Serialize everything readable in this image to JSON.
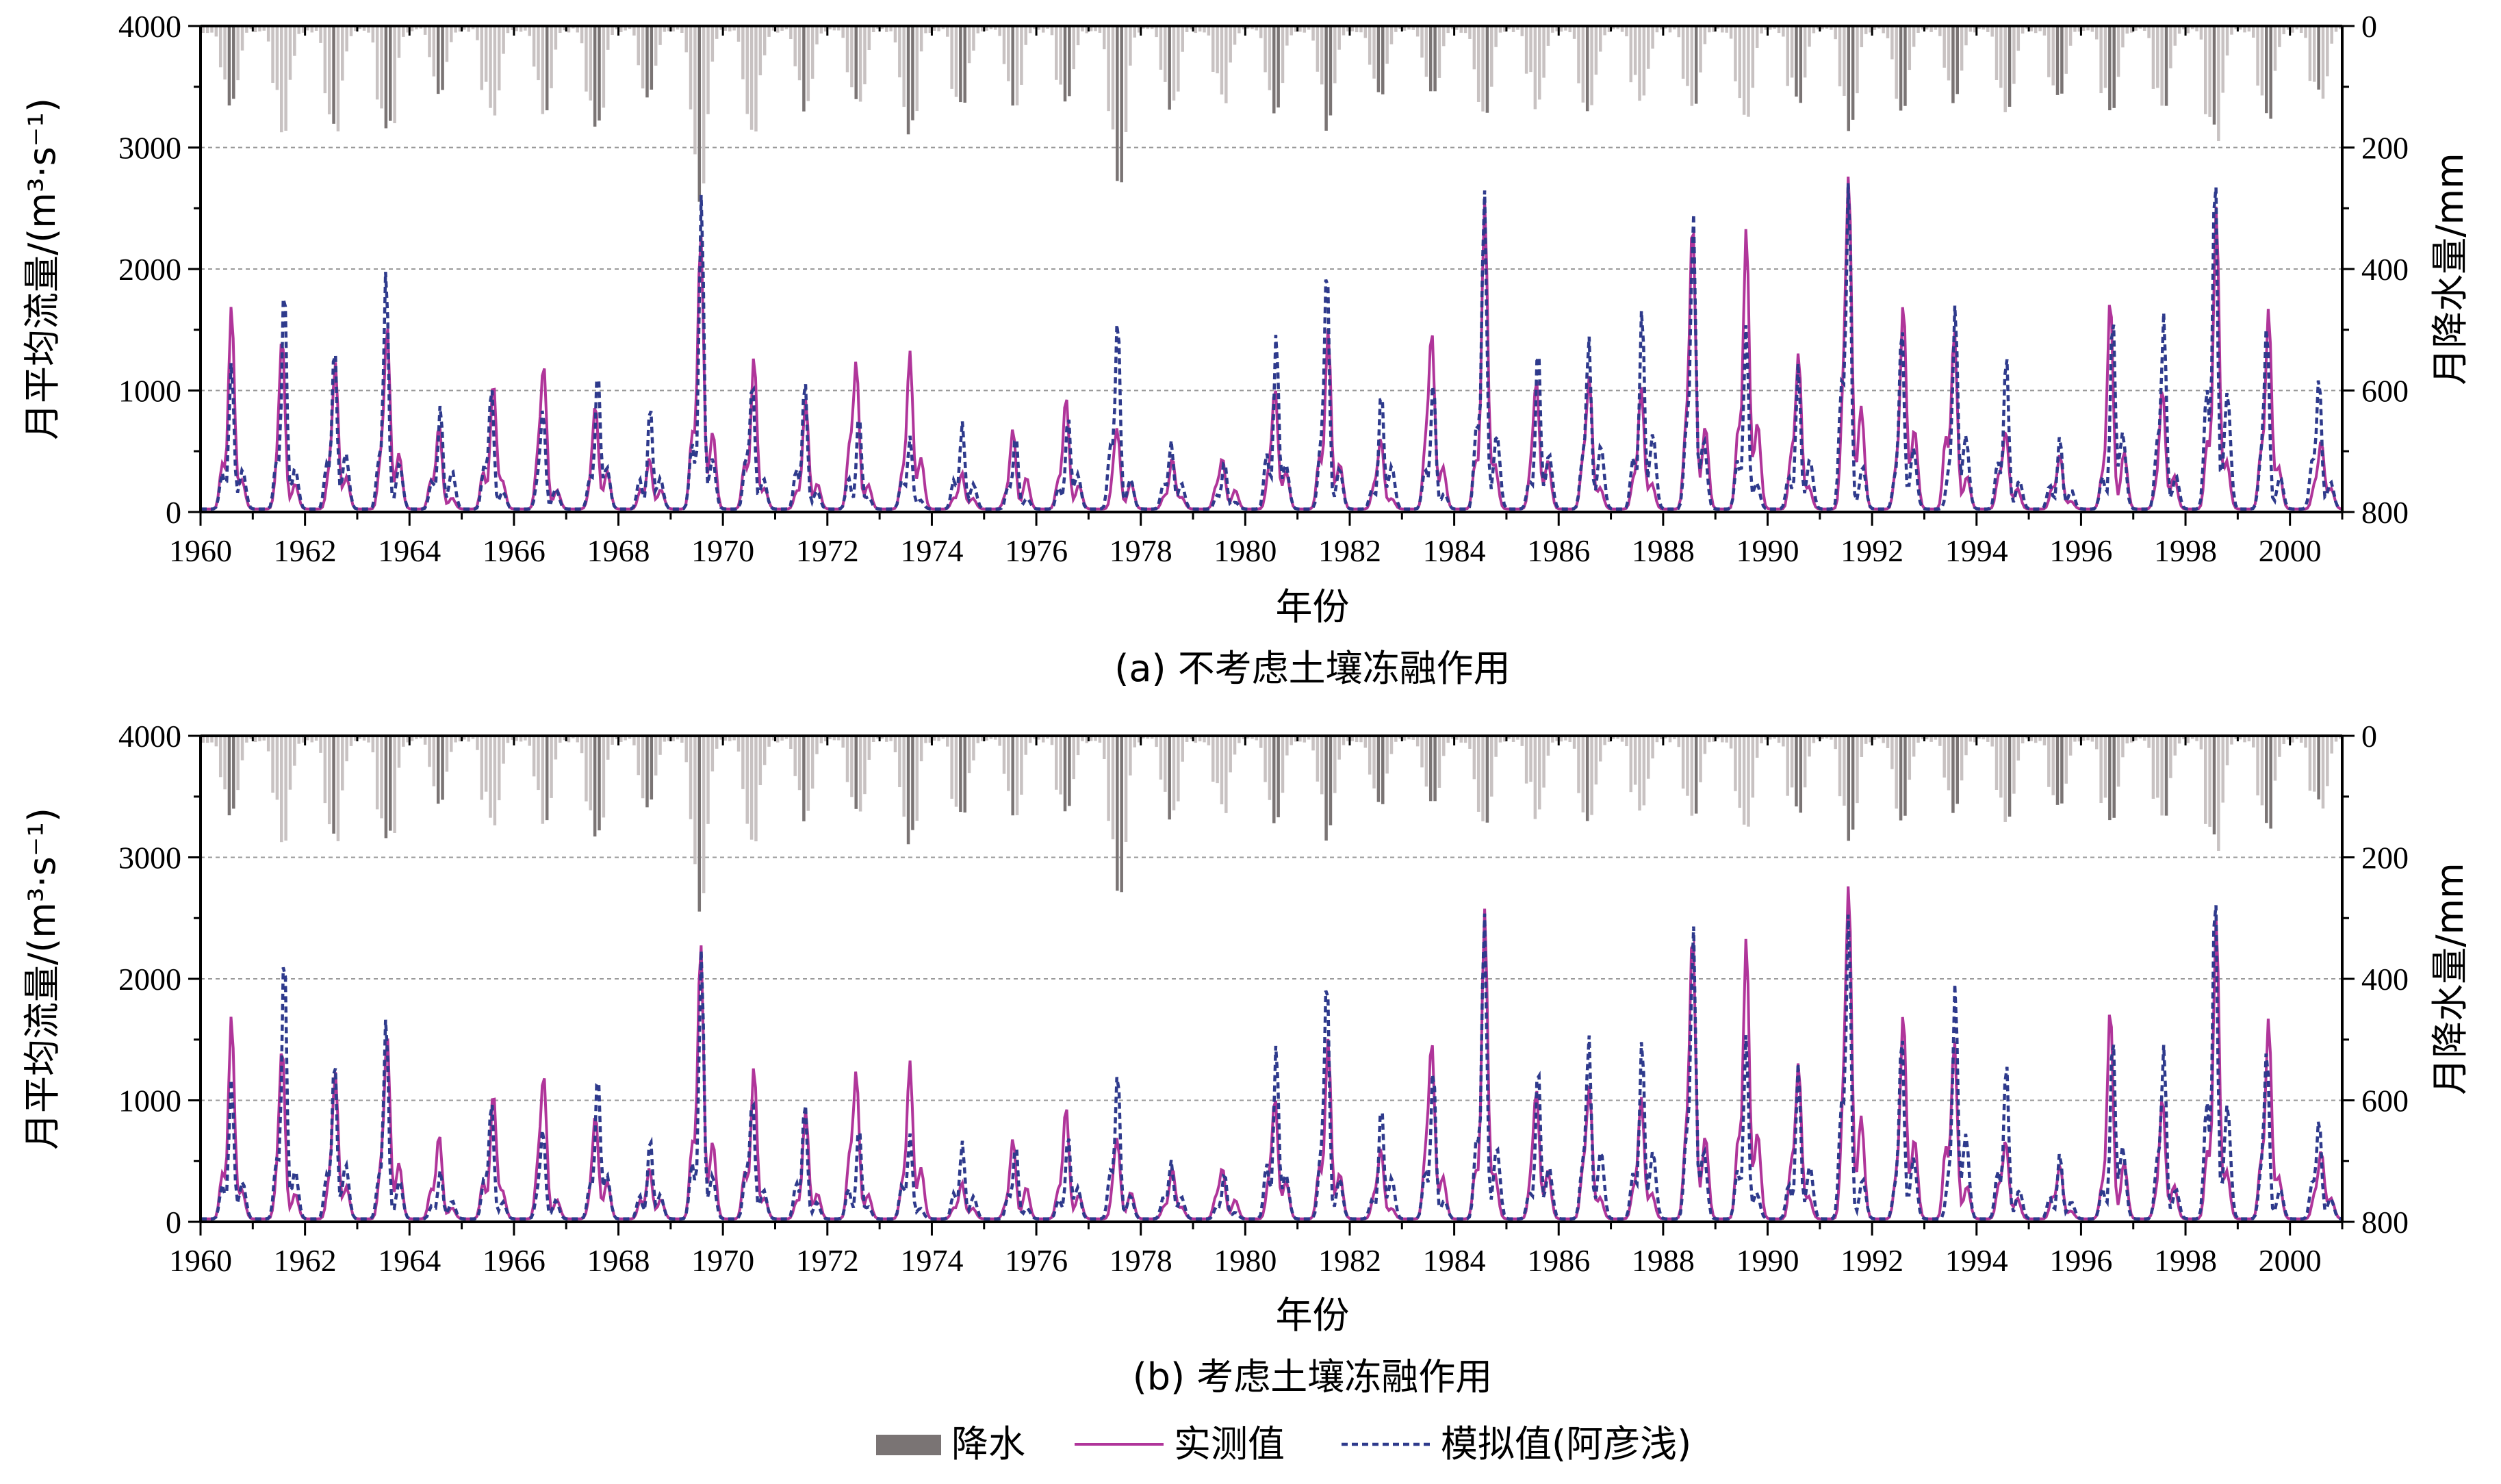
{
  "chart_data": [
    {
      "type": "line",
      "caption": "(a) 不考虑土壤冻融作用",
      "xlabel": "年份",
      "ylabel": "月平均流量/(m³·s⁻¹)",
      "ylabel2": "月降水量/mm",
      "xlim": [
        1960,
        2001
      ],
      "ylim": [
        0,
        4000
      ],
      "y2lim": [
        0,
        800
      ],
      "y2_inverted": true,
      "xticks": [
        "1960",
        "1962",
        "1964",
        "1966",
        "1968",
        "1970",
        "1972",
        "1974",
        "1976",
        "1978",
        "1980",
        "1982",
        "1984",
        "1986",
        "1988",
        "1990",
        "1992",
        "1994",
        "1996",
        "1998",
        "2000"
      ],
      "yticks": [
        "0",
        "1000",
        "2000",
        "3000",
        "4000"
      ],
      "y2ticks": [
        "800",
        "600",
        "400",
        "200",
        "0"
      ],
      "grid": "horizontal dashed",
      "x": [
        1960,
        1961,
        1962,
        1963,
        1964,
        1965,
        1966,
        1967,
        1968,
        1969,
        1970,
        1971,
        1972,
        1973,
        1974,
        1975,
        1976,
        1977,
        1978,
        1979,
        1980,
        1981,
        1982,
        1983,
        1984,
        1985,
        1986,
        1987,
        1988,
        1989,
        1990,
        1991,
        1992,
        1993,
        1994,
        1995,
        1996,
        1997,
        1998,
        1999,
        2000
      ],
      "series": [
        {
          "name": "实测值",
          "values": [
            1680,
            1400,
            1200,
            1500,
            700,
            1050,
            1170,
            850,
            420,
            2280,
            1260,
            900,
            1210,
            1300,
            300,
            660,
            930,
            620,
            420,
            420,
            1000,
            1480,
            580,
            1450,
            2550,
            1050,
            1080,
            1000,
            2380,
            2320,
            1280,
            2700,
            1700,
            1480,
            650,
            450,
            1750,
            1000,
            2500,
            1650,
            560
          ]
        },
        {
          "name": "模拟值(阿彦浅)",
          "values": [
            1220,
            1880,
            1370,
            1990,
            860,
            1020,
            800,
            1160,
            870,
            2600,
            1050,
            1080,
            800,
            600,
            720,
            620,
            780,
            1600,
            560,
            400,
            1460,
            2030,
            1000,
            1070,
            2640,
            1370,
            1410,
            1680,
            2420,
            1520,
            1200,
            2710,
            1530,
            1680,
            1300,
            610,
            1620,
            1590,
            2830,
            1500,
            1100
          ]
        }
      ],
      "precipitation": {
        "name": "降水",
        "peaks_mm": [
          130,
          175,
          180,
          175,
          120,
          150,
          140,
          175,
          120,
          270,
          175,
          130,
          135,
          165,
          130,
          130,
          120,
          260,
          140,
          130,
          150,
          160,
          120,
          110,
          150,
          130,
          150,
          130,
          130,
          150,
          130,
          160,
          140,
          120,
          150,
          120,
          140,
          140,
          190,
          155,
          120
        ]
      }
    },
    {
      "type": "line",
      "caption": "(b) 考虑土壤冻融作用",
      "xlabel": "年份",
      "ylabel": "月平均流量/(m³·s⁻¹)",
      "ylabel2": "月降水量/mm",
      "xlim": [
        1960,
        2001
      ],
      "ylim": [
        0,
        4000
      ],
      "y2lim": [
        0,
        800
      ],
      "y2_inverted": true,
      "xticks": [
        "1960",
        "1962",
        "1964",
        "1966",
        "1968",
        "1970",
        "1972",
        "1974",
        "1976",
        "1978",
        "1980",
        "1982",
        "1984",
        "1986",
        "1988",
        "1990",
        "1992",
        "1994",
        "1996",
        "1998",
        "2000"
      ],
      "yticks": [
        "0",
        "1000",
        "2000",
        "3000",
        "4000"
      ],
      "y2ticks": [
        "800",
        "600",
        "400",
        "200",
        "0"
      ],
      "grid": "horizontal dashed",
      "x": [
        1960,
        1961,
        1962,
        1963,
        1964,
        1965,
        1966,
        1967,
        1968,
        1969,
        1970,
        1971,
        1972,
        1973,
        1974,
        1975,
        1976,
        1977,
        1978,
        1979,
        1980,
        1981,
        1982,
        1983,
        1984,
        1985,
        1986,
        1987,
        1988,
        1989,
        1990,
        1991,
        1992,
        1993,
        1994,
        1995,
        1996,
        1997,
        1998,
        1999,
        2000
      ],
      "series": [
        {
          "name": "实测值",
          "values": [
            1680,
            1400,
            1200,
            1500,
            700,
            1050,
            1170,
            850,
            420,
            2280,
            1260,
            900,
            1210,
            1300,
            300,
            660,
            930,
            620,
            420,
            420,
            1000,
            1480,
            580,
            1450,
            2550,
            1050,
            1080,
            1000,
            2380,
            2320,
            1280,
            2700,
            1700,
            1480,
            650,
            450,
            1750,
            1000,
            2500,
            1650,
            560
          ]
        },
        {
          "name": "模拟值(阿彦浅)",
          "values": [
            1160,
            2250,
            1340,
            1670,
            400,
            980,
            720,
            1220,
            680,
            2220,
            1000,
            980,
            780,
            700,
            640,
            620,
            700,
            1230,
            480,
            380,
            1450,
            2020,
            960,
            1260,
            2530,
            1290,
            1500,
            1500,
            2400,
            1520,
            1280,
            2530,
            1540,
            1940,
            1320,
            550,
            1530,
            1410,
            2760,
            1380,
            830
          ]
        }
      ],
      "precipitation": {
        "name": "降水",
        "peaks_mm": [
          130,
          175,
          180,
          175,
          120,
          150,
          140,
          175,
          120,
          270,
          175,
          130,
          135,
          165,
          130,
          130,
          120,
          260,
          140,
          130,
          150,
          160,
          120,
          110,
          150,
          130,
          150,
          130,
          130,
          150,
          130,
          160,
          140,
          120,
          150,
          120,
          140,
          140,
          190,
          155,
          120
        ]
      }
    }
  ],
  "legend": {
    "position": "bottom-center",
    "items": [
      {
        "label": "降水",
        "kind": "bar",
        "color": "#7a7474"
      },
      {
        "label": "实测值",
        "kind": "line",
        "color": "#b0359a"
      },
      {
        "label": "模拟值(阿彦浅)",
        "kind": "dashed",
        "color": "#2e3a8c"
      }
    ]
  },
  "colors": {
    "observed": "#b0359a",
    "simulated": "#2e3a8c",
    "precip_dark": "#7a7474",
    "precip_light": "#c8c2c2",
    "grid": "#9a9a9a"
  }
}
